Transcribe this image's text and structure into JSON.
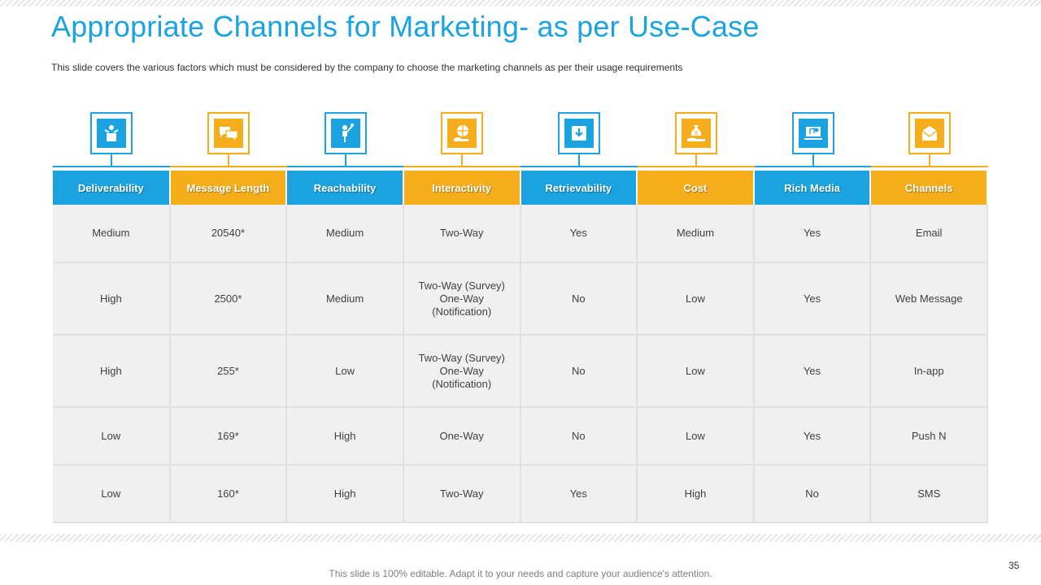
{
  "slide": {
    "title": "Appropriate  Channels for Marketing- as per Use-Case",
    "subtitle": "This slide covers the various factors which must be considered by the company to choose the marketing channels as per their usage requirements",
    "footer": "This slide is 100% editable. Adapt it to your needs and capture your audience's attention.",
    "page_number": "35"
  },
  "colors": {
    "blue": "#1aa3e0",
    "orange": "#f5ad1c",
    "cell_bg": "#f0f0f0"
  },
  "columns": [
    {
      "label": "Deliverability",
      "icon": "box-person-icon",
      "color": "blue"
    },
    {
      "label": "Message Length",
      "icon": "chat-bubbles-icon",
      "color": "orange"
    },
    {
      "label": "Reachability",
      "icon": "person-reaching-icon",
      "color": "blue"
    },
    {
      "label": "Interactivity",
      "icon": "globe-hand-icon",
      "color": "orange"
    },
    {
      "label": "Retrievability",
      "icon": "download-box-icon",
      "color": "blue"
    },
    {
      "label": "Cost",
      "icon": "money-bag-hand-icon",
      "color": "orange"
    },
    {
      "label": "Rich Media",
      "icon": "media-laptop-icon",
      "color": "blue"
    },
    {
      "label": "Channels",
      "icon": "envelope-icon",
      "color": "orange"
    }
  ],
  "rows": [
    [
      "Medium",
      "20540*",
      "Medium",
      "Two-Way",
      "Yes",
      "Medium",
      "Yes",
      "Email"
    ],
    [
      "High",
      "2500*",
      "Medium",
      "Two-Way (Survey)\nOne-Way\n(Notification)",
      "No",
      "Low",
      "Yes",
      "Web Message"
    ],
    [
      "High",
      "255*",
      "Low",
      "Two-Way (Survey)\nOne-Way\n(Notification)",
      "No",
      "Low",
      "Yes",
      "In-app"
    ],
    [
      "Low",
      "169*",
      "High",
      "One-Way",
      "No",
      "Low",
      "Yes",
      "Push N"
    ],
    [
      "Low",
      "160*",
      "High",
      "Two-Way",
      "Yes",
      "High",
      "No",
      "SMS"
    ]
  ]
}
